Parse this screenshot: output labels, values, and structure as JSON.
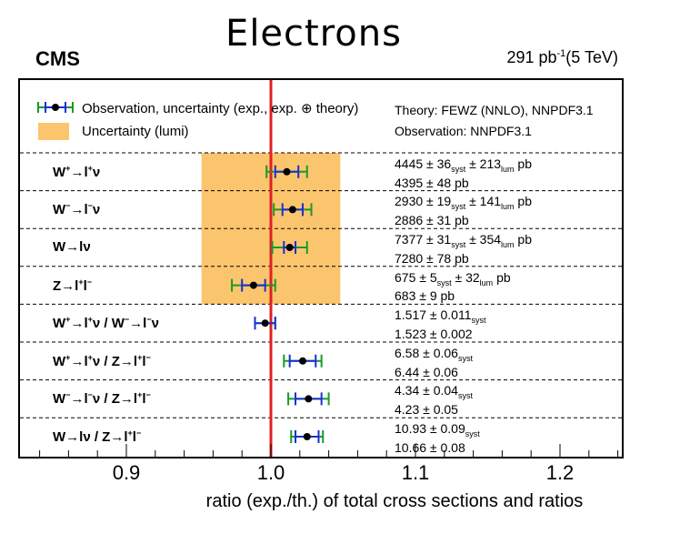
{
  "title": "Electrons",
  "experiment": "CMS",
  "lumi": {
    "value": "291 pb",
    "exp": "-1",
    "suffix": "(5 TeV)"
  },
  "legend": {
    "observation": "Observation, uncertainty (exp., exp. ⊕ theory)",
    "lumi_band": "Uncertainty (lumi)"
  },
  "theory_note": "Theory: FEWZ (NNLO), NNPDF3.1",
  "observation_note": "Observation: NNPDF3.1",
  "xaxis": {
    "label": "ratio (exp./th.) of total cross sections and ratios",
    "ticks": [
      "0.9",
      "1.0",
      "1.1",
      "1.2"
    ]
  },
  "colors": {
    "lumi_band": "#fbc56d",
    "ref_line": "#e02020",
    "exp_err": "#1a2ed1",
    "tot_err": "#1a9a2a"
  },
  "rows": [
    {
      "label_html": "W<sup>+</sup>→l<sup>+</sup>ν",
      "meas_html": "4445 ± 36<sub>syst</sub> ± 213<sub>lum</sub> pb",
      "theo": "4395 ± 48 pb"
    },
    {
      "label_html": "W<sup>−</sup>→l<sup>−</sup>ν",
      "meas_html": "2930 ± 19<sub>syst</sub> ± 141<sub>lum</sub> pb",
      "theo": "2886 ± 31 pb"
    },
    {
      "label_html": "W→lν",
      "meas_html": "7377 ± 31<sub>syst</sub> ± 354<sub>lum</sub> pb",
      "theo": "7280 ± 78 pb"
    },
    {
      "label_html": "Z→l<sup>+</sup>l<sup>−</sup>",
      "meas_html": "675 ± 5<sub>syst</sub> ± 32<sub>lum</sub> pb",
      "theo": "683 ± 9 pb"
    },
    {
      "label_html": "W<sup>+</sup>→l<sup>+</sup>ν / W<sup>−</sup>→l<sup>−</sup>ν",
      "meas_html": "1.517 ± 0.011<sub>syst</sub>",
      "theo": "1.523 ± 0.002"
    },
    {
      "label_html": "W<sup>+</sup>→l<sup>+</sup>ν / Z→l<sup>+</sup>l<sup>−</sup>",
      "meas_html": "6.58 ± 0.06<sub>syst</sub>",
      "theo": "6.44 ± 0.06"
    },
    {
      "label_html": "W<sup>−</sup>→l<sup>−</sup>ν / Z→l<sup>+</sup>l<sup>−</sup>",
      "meas_html": "4.34 ± 0.04<sub>syst</sub>",
      "theo": "4.23 ± 0.05"
    },
    {
      "label_html": "W→lν / Z→l<sup>+</sup>l<sup>−</sup>",
      "meas_html": "10.93 ± 0.09<sub>syst</sub>",
      "theo": "10.66 ± 0.08"
    }
  ],
  "chart_data": {
    "type": "scatter",
    "title": "Electrons",
    "xlabel": "ratio (exp./th.) of total cross sections and ratios",
    "xlim": [
      0.83,
      1.25
    ],
    "reference_value": 1.0,
    "lumi_band": [
      0.952,
      1.048
    ],
    "categories": [
      "W+→l+ν",
      "W−→l−ν",
      "W→lν",
      "Z→l+l−",
      "W+→l+ν / W−→l−ν",
      "W+→l+ν / Z→l+l−",
      "W−→l−ν / Z→l+l−",
      "W→lν / Z→l+l−"
    ],
    "series": [
      {
        "name": "Observation, uncertainty (exp., exp. ⊕ theory)",
        "values": [
          1.011,
          1.015,
          1.013,
          0.988,
          0.996,
          1.022,
          1.026,
          1.025
        ],
        "exp_err": [
          0.008,
          0.007,
          0.004,
          0.008,
          0.007,
          0.009,
          0.009,
          0.008
        ],
        "total_err": [
          0.014,
          0.013,
          0.012,
          0.015,
          0.007,
          0.013,
          0.014,
          0.011
        ]
      }
    ]
  }
}
